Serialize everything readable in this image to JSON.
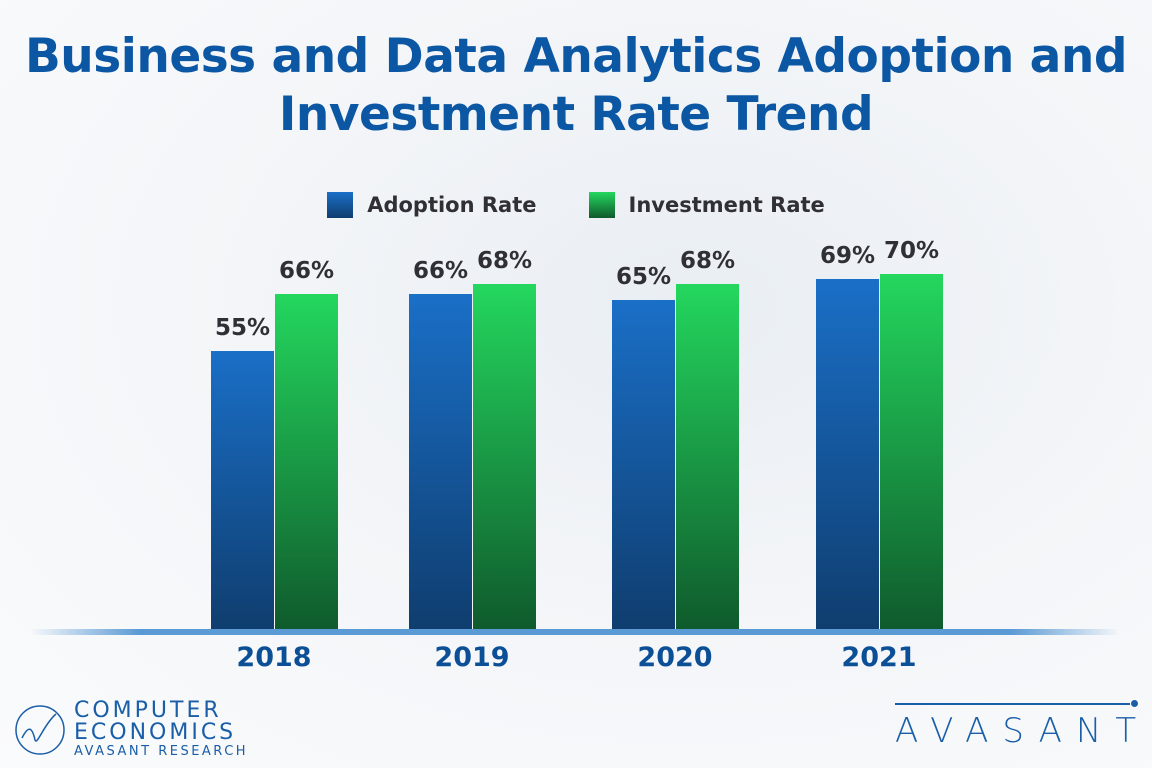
{
  "chart_data": {
    "type": "bar",
    "title": "Business and Data Analytics Adoption and Investment Rate Trend",
    "categories": [
      "2018",
      "2019",
      "2020",
      "2021"
    ],
    "series": [
      {
        "name": "Adoption Rate",
        "values": [
          55,
          66,
          65,
          69
        ],
        "labels": [
          "55%",
          "66%",
          "65%",
          "69%"
        ],
        "color": "#1565b8"
      },
      {
        "name": "Investment Rate",
        "values": [
          66,
          68,
          68,
          70
        ],
        "labels": [
          "66%",
          "68%",
          "68%",
          "70%"
        ],
        "color": "#22c95a"
      }
    ],
    "ylim": [
      0,
      100
    ],
    "grid": false,
    "legend_position": "top-center"
  },
  "logos": {
    "left_line1": "COMPUTER",
    "left_line2": "ECONOMICS",
    "left_line3": "AVASANT RESEARCH",
    "right": "AVASANT"
  }
}
